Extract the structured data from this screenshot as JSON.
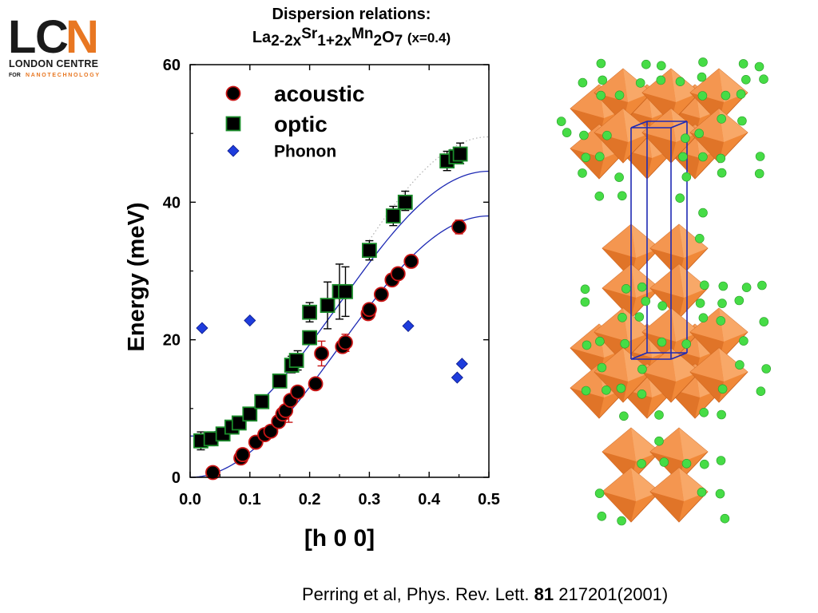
{
  "logo": {
    "letters": [
      "L",
      "C",
      "N"
    ],
    "line1": "LONDON CENTRE",
    "line2a": "FOR",
    "line2b": "NANOTECHNOLOGY",
    "colors": {
      "dark": "#1a1a1a",
      "accent": "#e87722"
    }
  },
  "title": {
    "line1": "Dispersion relations:",
    "formula": {
      "la": "La",
      "la_sub": "2-2x",
      "sr": "Sr",
      "sr_sub": "1+2x",
      "mn": "Mn",
      "mn_sub": "2",
      "o": "O",
      "o_sub": "7",
      "x": "(x=0.4)"
    }
  },
  "chart_data": {
    "type": "scatter",
    "xlabel": "[h 0 0]",
    "ylabel": "Energy (meV)",
    "xlim": [
      0.0,
      0.5
    ],
    "ylim": [
      0,
      60
    ],
    "xticks": [
      "0.0",
      "0.1",
      "0.2",
      "0.3",
      "0.4",
      "0.5"
    ],
    "yticks": [
      "0",
      "20",
      "40",
      "60"
    ],
    "legend_position": "top-left",
    "series": [
      {
        "name": "acoustic",
        "marker": "circle",
        "color": "#000000",
        "edge": "#c81414",
        "points": [
          [
            0.038,
            0.7
          ],
          [
            0.085,
            2.8
          ],
          [
            0.088,
            3.3
          ],
          [
            0.11,
            5.1
          ],
          [
            0.125,
            6.2
          ],
          [
            0.135,
            6.7
          ],
          [
            0.148,
            8.1
          ],
          [
            0.155,
            9.2
          ],
          [
            0.16,
            9.7
          ],
          [
            0.168,
            11.2
          ],
          [
            0.18,
            12.4
          ],
          [
            0.21,
            13.6
          ],
          [
            0.22,
            18.0
          ],
          [
            0.255,
            19.0
          ],
          [
            0.26,
            19.6
          ],
          [
            0.298,
            23.8
          ],
          [
            0.3,
            24.4
          ],
          [
            0.32,
            26.6
          ],
          [
            0.338,
            28.7
          ],
          [
            0.348,
            29.6
          ],
          [
            0.37,
            31.4
          ],
          [
            0.45,
            36.4
          ]
        ]
      },
      {
        "name": "optic",
        "marker": "square",
        "color": "#000000",
        "edge": "#1a8c2a",
        "points": [
          [
            0.018,
            5.3
          ],
          [
            0.035,
            5.6
          ],
          [
            0.055,
            6.3
          ],
          [
            0.07,
            7.3
          ],
          [
            0.082,
            7.9
          ],
          [
            0.1,
            9.2
          ],
          [
            0.12,
            11.0
          ],
          [
            0.15,
            14.0
          ],
          [
            0.17,
            16.3
          ],
          [
            0.178,
            17.0
          ],
          [
            0.2,
            20.3
          ],
          [
            0.2,
            24.0
          ],
          [
            0.23,
            25.0
          ],
          [
            0.25,
            27.0
          ],
          [
            0.26,
            27.0
          ],
          [
            0.3,
            33.0
          ],
          [
            0.34,
            38.0
          ],
          [
            0.36,
            40.0
          ],
          [
            0.43,
            46.0
          ],
          [
            0.445,
            46.6
          ],
          [
            0.452,
            47.0
          ]
        ]
      },
      {
        "name": "Phonon",
        "marker": "diamond",
        "color": "#1e3cdc",
        "points": [
          [
            0.02,
            21.7
          ],
          [
            0.1,
            22.8
          ],
          [
            0.365,
            22.0
          ],
          [
            0.447,
            14.5
          ],
          [
            0.455,
            16.5
          ]
        ]
      }
    ],
    "error_bars": [
      {
        "x": 0.22,
        "lo": 16.2,
        "hi": 19.8,
        "color": "#c81414"
      },
      {
        "x": 0.26,
        "lo": 18.3,
        "hi": 20.8,
        "color": "#c81414"
      },
      {
        "x": 0.165,
        "lo": 8.0,
        "hi": 10.4,
        "color": "#c81414"
      },
      {
        "x": 0.45,
        "lo": 35.4,
        "hi": 37.4,
        "color": "#c81414"
      },
      {
        "x": 0.018,
        "lo": 4.0,
        "hi": 6.6,
        "color": "#000000"
      },
      {
        "x": 0.035,
        "lo": 4.6,
        "hi": 6.6,
        "color": "#000000"
      },
      {
        "x": 0.17,
        "lo": 15.2,
        "hi": 17.6,
        "color": "#000000"
      },
      {
        "x": 0.18,
        "lo": 15.6,
        "hi": 18.4,
        "color": "#000000"
      },
      {
        "x": 0.2,
        "lo": 22.6,
        "hi": 25.4,
        "color": "#000000"
      },
      {
        "x": 0.23,
        "lo": 21.6,
        "hi": 28.4,
        "color": "#000000"
      },
      {
        "x": 0.25,
        "lo": 23.0,
        "hi": 31.0,
        "color": "#000000"
      },
      {
        "x": 0.26,
        "lo": 23.4,
        "hi": 30.6,
        "color": "#000000"
      },
      {
        "x": 0.3,
        "lo": 31.6,
        "hi": 34.4,
        "color": "#000000"
      },
      {
        "x": 0.34,
        "lo": 36.6,
        "hi": 39.4,
        "color": "#000000"
      },
      {
        "x": 0.36,
        "lo": 38.8,
        "hi": 41.6,
        "color": "#000000"
      },
      {
        "x": 0.43,
        "lo": 44.6,
        "hi": 47.4,
        "color": "#000000"
      },
      {
        "x": 0.452,
        "lo": 45.6,
        "hi": 48.6,
        "color": "#000000"
      }
    ],
    "fits": [
      {
        "name": "acoustic fit",
        "y0": 0,
        "y1": 38.0,
        "color": "#1e2ab4",
        "style": "solid"
      },
      {
        "name": "optic fit",
        "y0": 6.0,
        "y1": 44.5,
        "color": "#1e2ab4",
        "style": "solid"
      },
      {
        "name": "optic extension",
        "y0": 6.0,
        "y1": 49.5,
        "color": "#b0b0b0",
        "style": "dotted",
        "from": 0.3
      }
    ]
  },
  "crystal": {
    "octahedron_color": "#f08838",
    "atom_color": "#46dc46",
    "cell_color": "#1e2ab4"
  },
  "citation": {
    "authors": "Perring et al, Phys. Rev. Lett.",
    "volume": "81",
    "pages": "217201(2001)"
  }
}
